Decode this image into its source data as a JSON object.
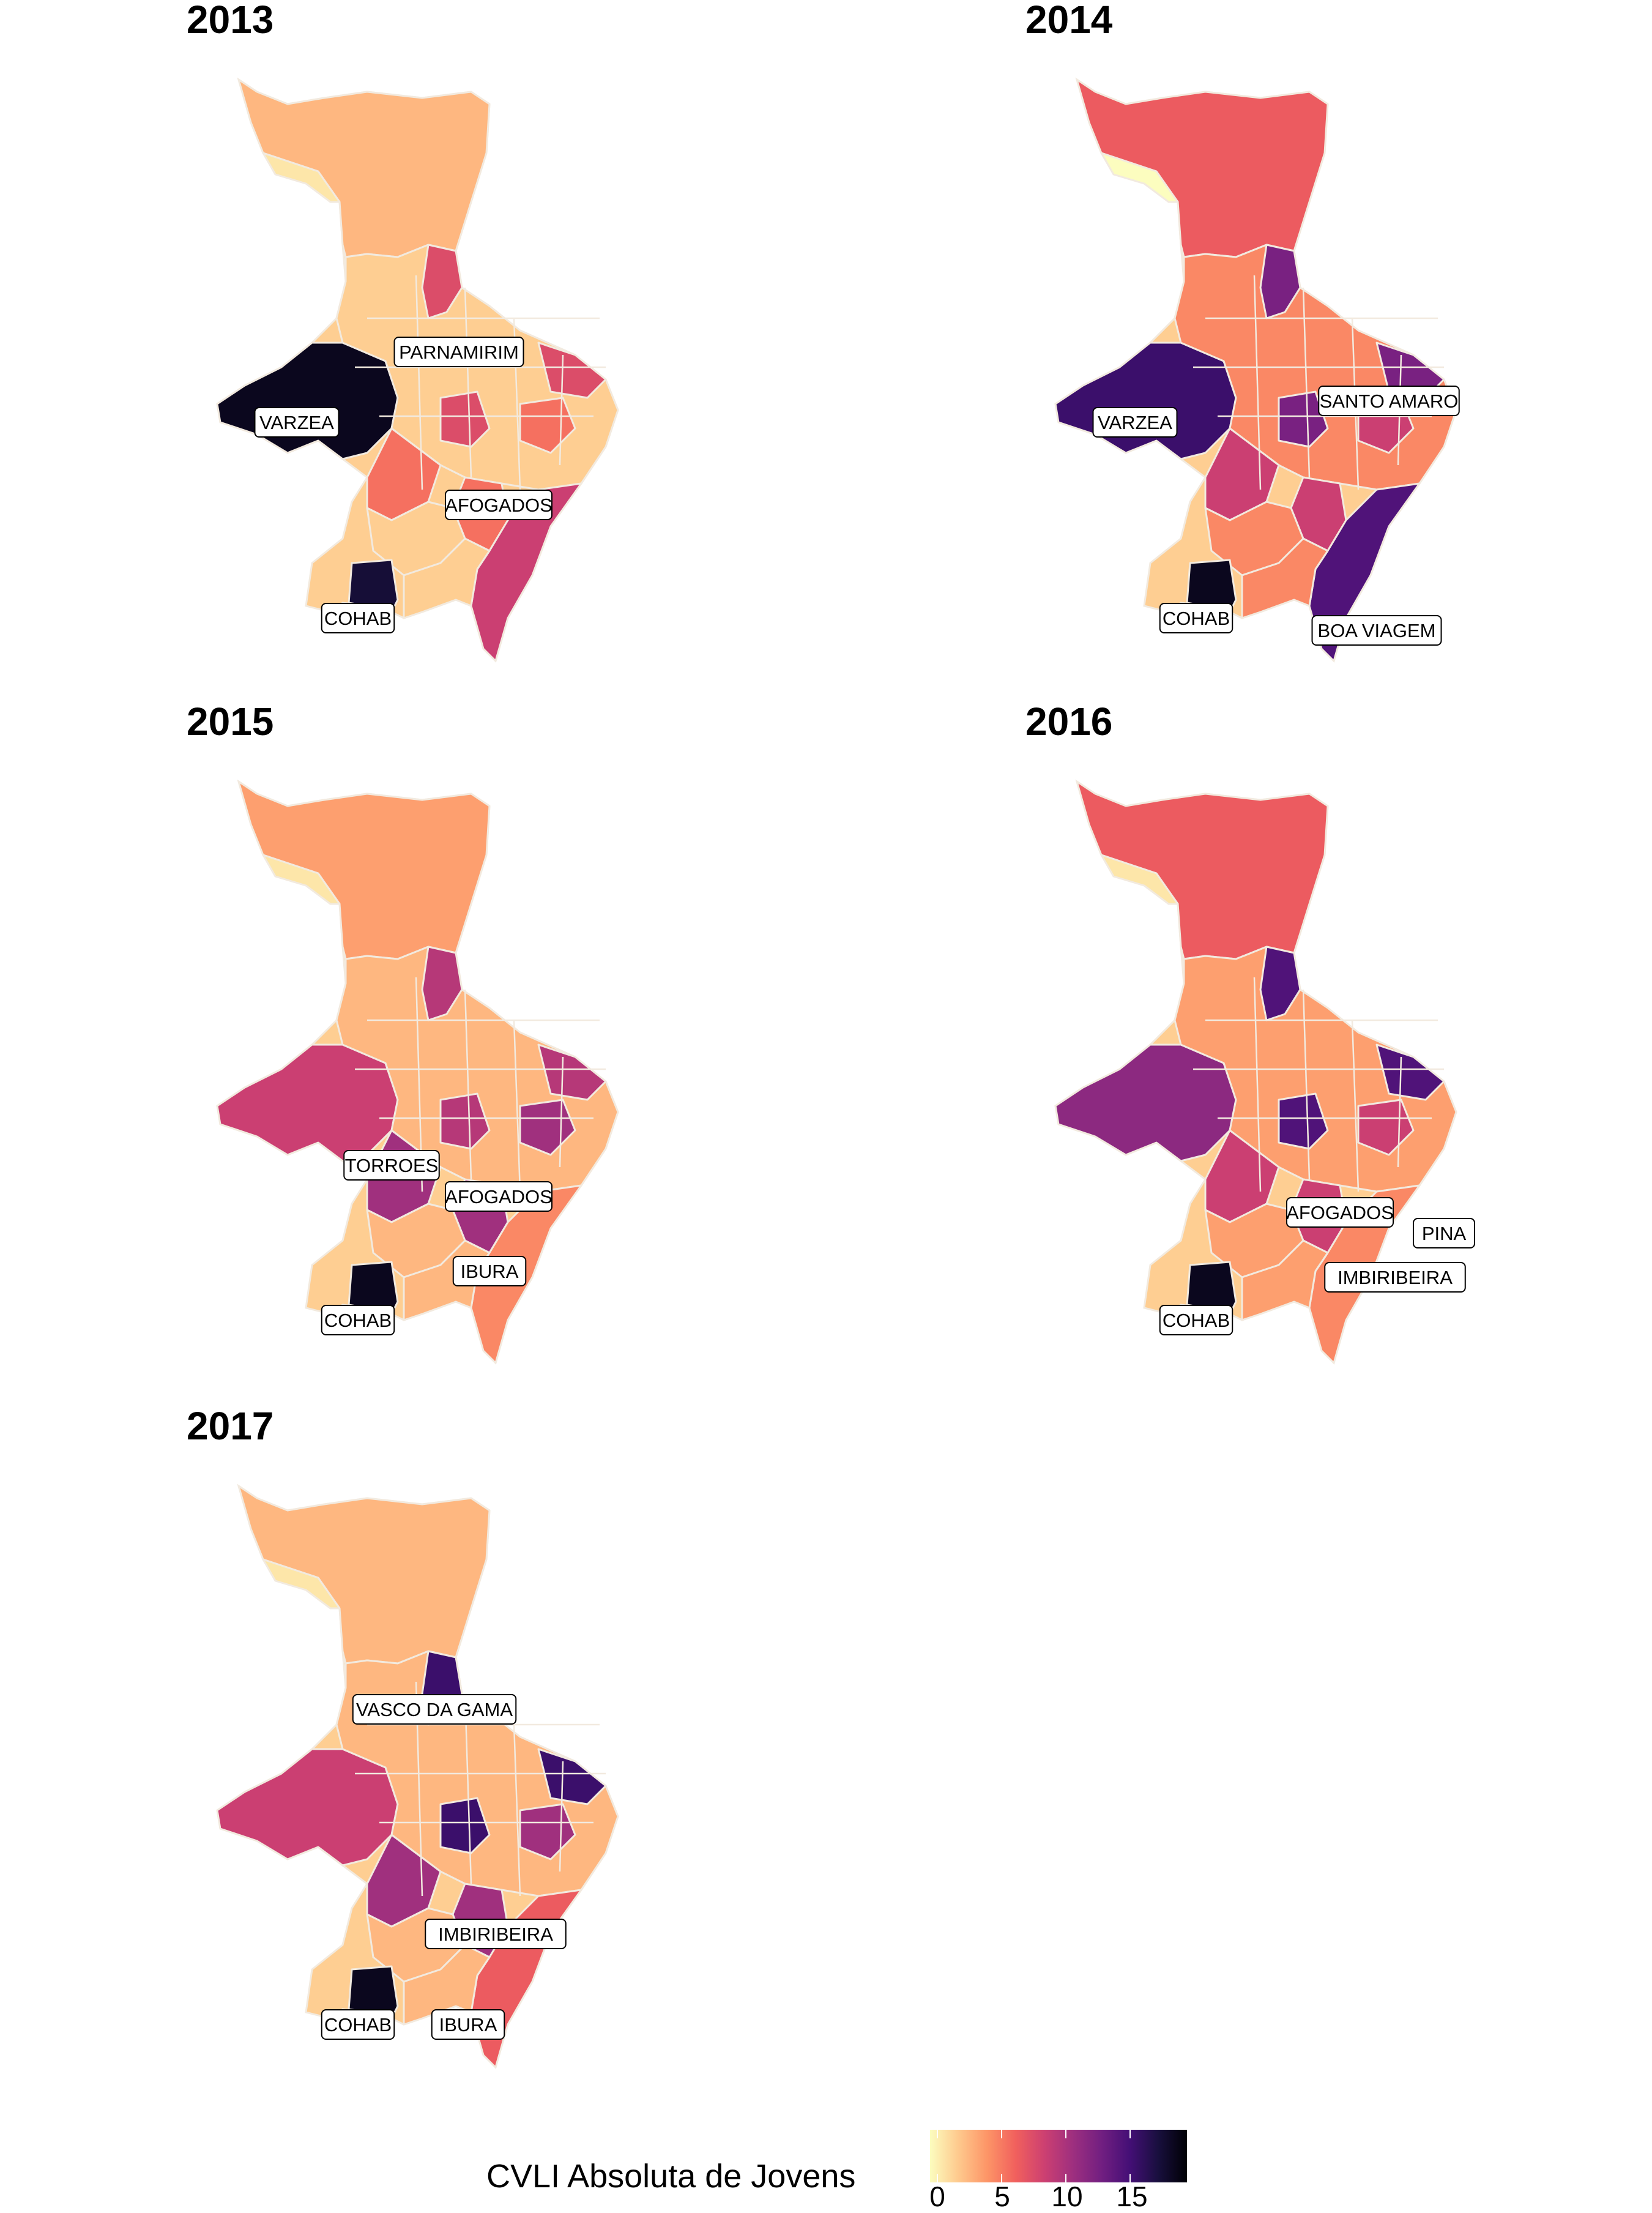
{
  "panels": [
    {
      "year": "2013",
      "scheme": {
        "north": 3,
        "west": 19,
        "cohab": 18,
        "boa_viagem": 9,
        "central_a": 8,
        "central_b": 6,
        "mid": 2,
        "nw_strip": 1
      },
      "labels": [
        "PARNAMIRIM",
        "VARZEA",
        "AFOGADOS",
        "COHAB"
      ]
    },
    {
      "year": "2014",
      "scheme": {
        "north": 7,
        "west": 16,
        "cohab": 19,
        "boa_viagem": 15,
        "central_a": 13,
        "central_b": 9,
        "mid": 5,
        "nw_strip": 0
      },
      "labels": [
        "SANTO AMARO",
        "VARZEA",
        "COHAB",
        "BOA VIAGEM"
      ]
    },
    {
      "year": "2015",
      "scheme": {
        "north": 4,
        "west": 9,
        "cohab": 19,
        "boa_viagem": 5,
        "central_a": 10,
        "central_b": 11,
        "mid": 3,
        "nw_strip": 1
      },
      "labels": [
        "TORROES",
        "AFOGADOS",
        "IBURA",
        "COHAB"
      ]
    },
    {
      "year": "2016",
      "scheme": {
        "north": 7,
        "west": 12,
        "cohab": 19,
        "boa_viagem": 5,
        "central_a": 15,
        "central_b": 9,
        "mid": 4,
        "nw_strip": 1
      },
      "labels": [
        "AFOGADOS",
        "PINA",
        "IMBIRIBEIRA",
        "COHAB"
      ]
    },
    {
      "year": "2017",
      "scheme": {
        "north": 3,
        "west": 9,
        "cohab": 19,
        "boa_viagem": 7,
        "central_a": 16,
        "central_b": 11,
        "mid": 3,
        "nw_strip": 1
      },
      "labels": [
        "VASCO DA GAMA",
        "IMBIRIBEIRA",
        "COHAB",
        "IBURA"
      ]
    }
  ],
  "legend": {
    "title": "CVLI Absoluta de Jovens",
    "ticks": [
      "0",
      "5",
      "10",
      "15"
    ],
    "range": [
      0,
      20
    ],
    "colors": [
      "#fcfdbf",
      "#fec98d",
      "#fd9567",
      "#f1605d",
      "#cd4071",
      "#9e2f7f",
      "#721f81",
      "#440f76",
      "#180f3d",
      "#000004"
    ]
  },
  "colors": {
    "background": "#ffffff",
    "border": "#f2eadf"
  }
}
